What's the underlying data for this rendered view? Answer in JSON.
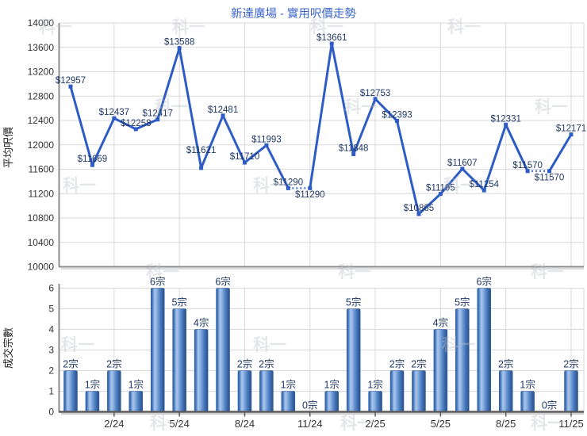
{
  "title": "新達廣場 - 實用呎價走勢",
  "watermark": "科一",
  "colors": {
    "title": "#3c64c8",
    "line": "#2e5cc5",
    "dotted_line": "#4f7add",
    "point_label": "#1f3864",
    "bar_label": "#1f3864",
    "grid": "#d9d9d9",
    "axis": "#8c8c8c",
    "axis_dark": "#5a5a5a",
    "tick_text": "#333333",
    "bar_dark": "#2d5899",
    "bar_light": "#a9c6ec",
    "watermark_gray": "#bcc0c8"
  },
  "chart_data": [
    {
      "type": "line",
      "title": "新達廣場 - 實用呎價走勢",
      "ylabel": "平均呎價",
      "ylim": [
        10000,
        14000
      ],
      "ytick_step": 400,
      "yticks": [
        "14000",
        "13600",
        "13200",
        "12800",
        "12400",
        "12000",
        "11600",
        "11200",
        "10800",
        "10400",
        "10000"
      ],
      "xtick_labels": [
        "2/24",
        "5/24",
        "8/24",
        "11/24",
        "2/25",
        "5/25",
        "8/25",
        "11/25"
      ],
      "xtick_indices": [
        2,
        5,
        8,
        11,
        14,
        17,
        20,
        23
      ],
      "grid": true,
      "legend": "none",
      "values": [
        12957,
        11669,
        12437,
        12258,
        12417,
        13588,
        11621,
        12481,
        11710,
        11993,
        11290,
        11290,
        13661,
        11848,
        12753,
        12393,
        10865,
        11195,
        11607,
        11254,
        12331,
        11570,
        11570,
        12171
      ],
      "point_labels": [
        "$12957",
        "$11669",
        "$12437",
        "$12258",
        "$12417",
        "$13588",
        "$11621",
        "$12481",
        "$11710",
        "$11993",
        "$11290",
        "$11290",
        "$13661",
        "$11848",
        "$12753",
        "$12393",
        "$10865",
        "$11195",
        "$11607",
        "$11254",
        "$12331",
        "$11570",
        "$11570",
        "$12171"
      ],
      "label_side": [
        "above",
        "above",
        "above",
        "above",
        "above",
        "above",
        "above",
        "above",
        "above",
        "above",
        "above",
        "below",
        "above",
        "above",
        "above",
        "above",
        "above",
        "above",
        "above",
        "above",
        "above",
        "above",
        "below",
        "above"
      ],
      "label_dy_override": {
        "6": -19
      },
      "dotted_segments": [
        [
          10,
          11
        ],
        [
          21,
          22
        ]
      ]
    },
    {
      "type": "bar",
      "ylabel": "成交宗數",
      "ylim": [
        0,
        6
      ],
      "yticks": [
        "6",
        "5",
        "4",
        "3",
        "2",
        "1",
        "0"
      ],
      "xtick_labels": [
        "2/24",
        "5/24",
        "8/24",
        "11/24",
        "2/25",
        "5/25",
        "8/25",
        "11/25"
      ],
      "xtick_indices": [
        2,
        5,
        8,
        11,
        14,
        17,
        20,
        23
      ],
      "grid": true,
      "values": [
        2,
        1,
        2,
        1,
        6,
        5,
        4,
        6,
        2,
        2,
        1,
        0,
        1,
        5,
        1,
        2,
        2,
        4,
        5,
        6,
        2,
        1,
        0,
        2
      ],
      "bar_labels": [
        "2宗",
        "1宗",
        "2宗",
        "1宗",
        "6宗",
        "5宗",
        "4宗",
        "6宗",
        "2宗",
        "2宗",
        "1宗",
        "0宗",
        "1宗",
        "5宗",
        "1宗",
        "2宗",
        "2宗",
        "4宗",
        "5宗",
        "6宗",
        "2宗",
        "1宗",
        "0宗",
        "2宗"
      ]
    }
  ]
}
